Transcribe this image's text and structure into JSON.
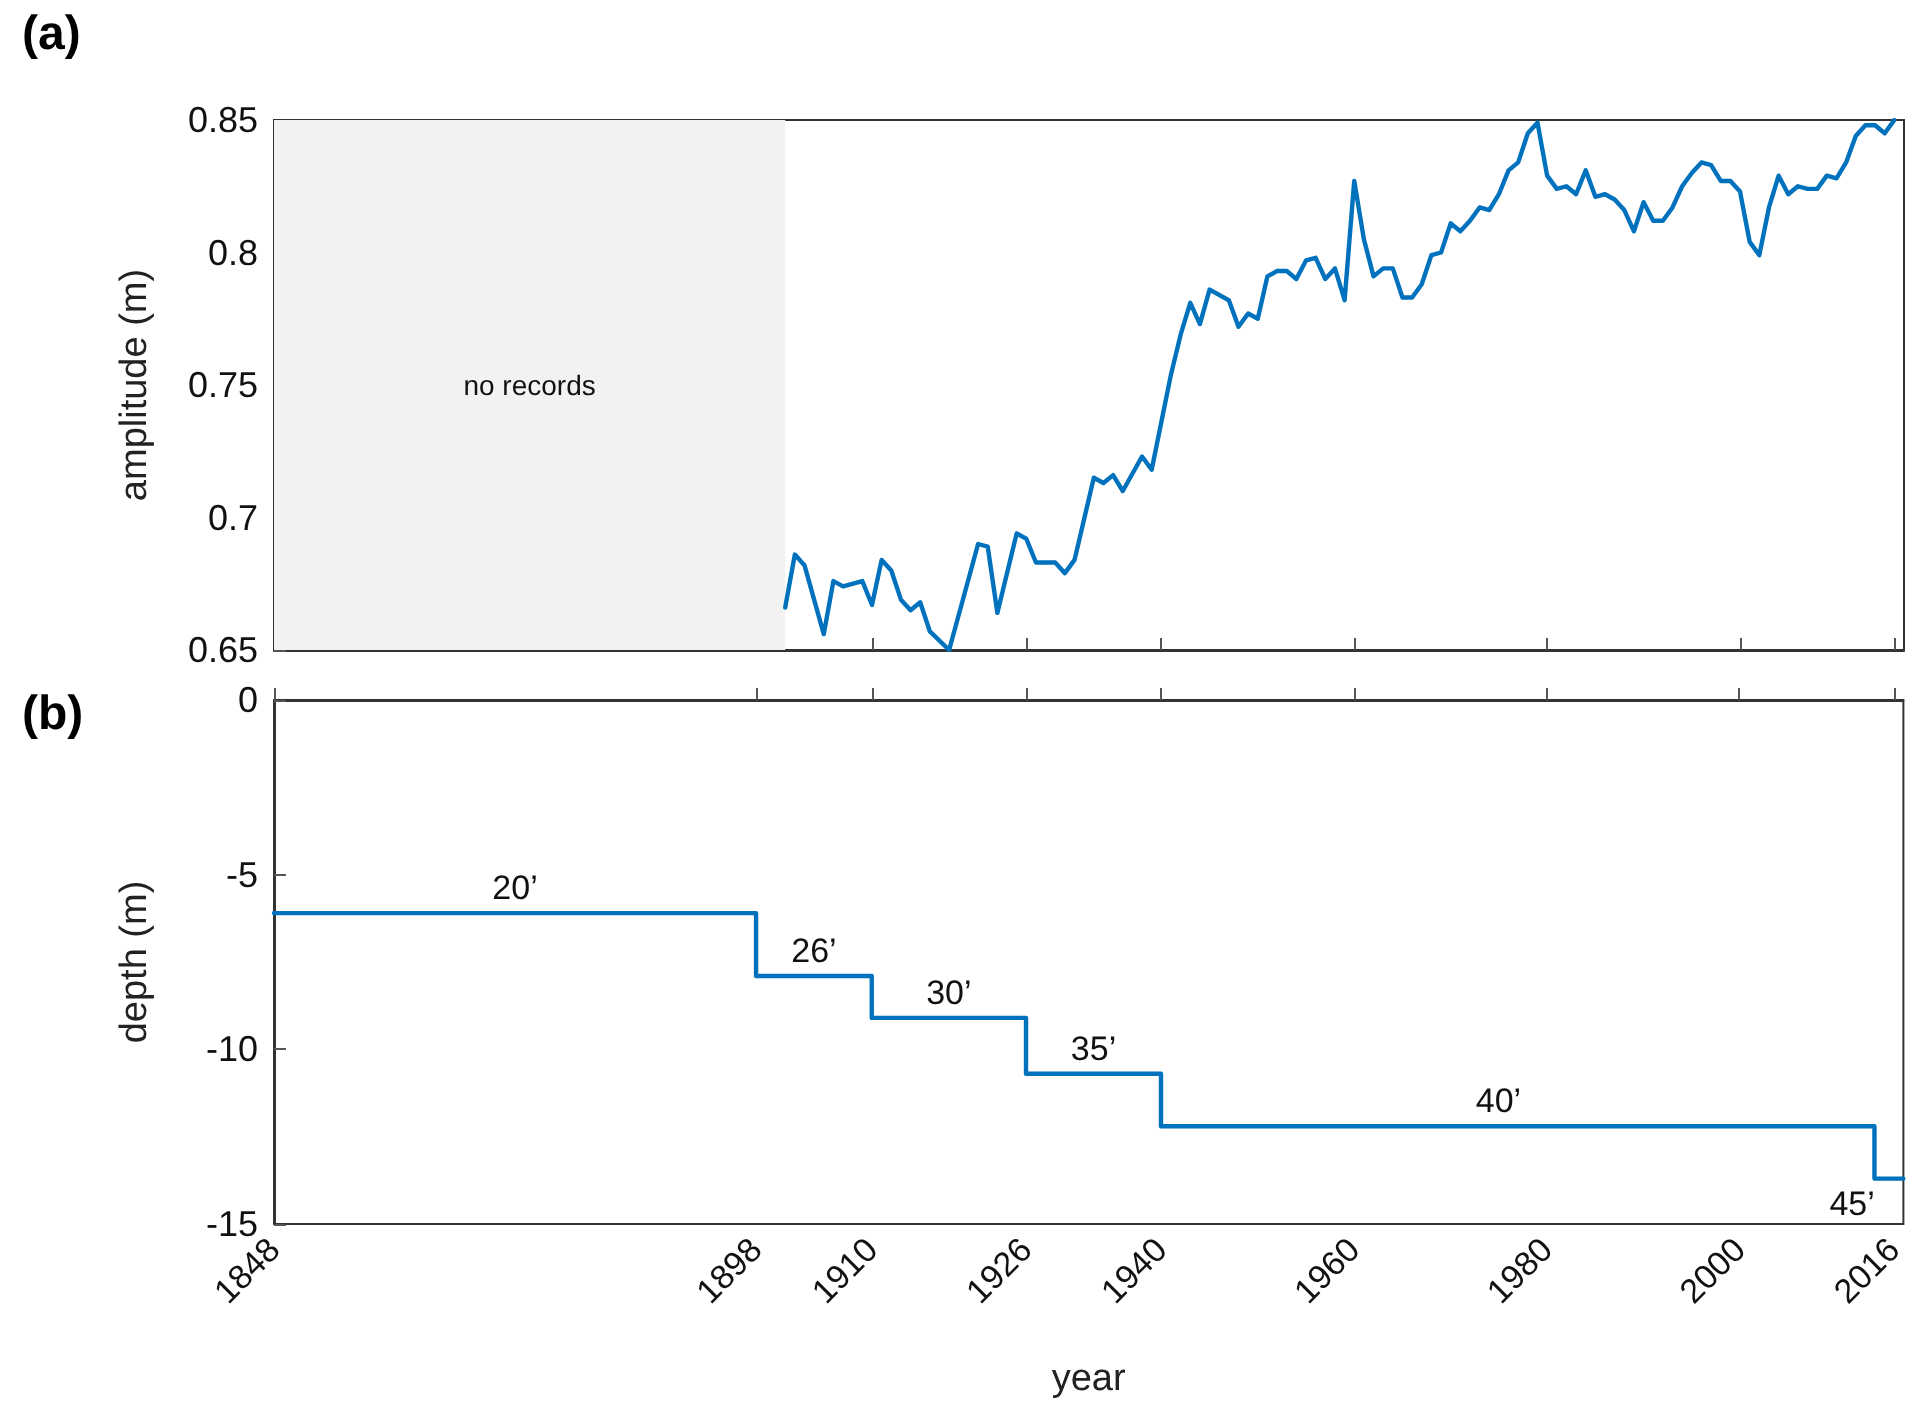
{
  "chart_data": [
    {
      "type": "line",
      "title": "(a)",
      "ylabel": "amplitude (m)",
      "color": "#0072bd",
      "line_style": "solid",
      "grid": false,
      "tick_labels": "y",
      "x": [
        1901,
        1902,
        1903,
        1905,
        1906,
        1907,
        1909,
        1910,
        1911,
        1912,
        1913,
        1914,
        1915,
        1916,
        1918,
        1921,
        1922,
        1923,
        1925,
        1926,
        1927,
        1929,
        1930,
        1931,
        1933,
        1934,
        1935,
        1936,
        1938,
        1939,
        1941,
        1942,
        1943,
        1944,
        1945,
        1947,
        1948,
        1949,
        1950,
        1951,
        1952,
        1953,
        1954,
        1955,
        1956,
        1957,
        1958,
        1959,
        1960,
        1961,
        1962,
        1963,
        1964,
        1965,
        1966,
        1967,
        1968,
        1969,
        1970,
        1971,
        1972,
        1973,
        1974,
        1975,
        1976,
        1977,
        1978,
        1979,
        1980,
        1981,
        1982,
        1983,
        1984,
        1985,
        1986,
        1987,
        1988,
        1989,
        1990,
        1991,
        1992,
        1993,
        1994,
        1995,
        1996,
        1997,
        1998,
        1999,
        2000,
        2001,
        2002,
        2003,
        2004,
        2005,
        2006,
        2007,
        2008,
        2009,
        2010,
        2011,
        2012,
        2013,
        2014,
        2015,
        2016
      ],
      "values": [
        0.666,
        0.686,
        0.682,
        0.656,
        0.676,
        0.674,
        0.676,
        0.667,
        0.684,
        0.68,
        0.669,
        0.665,
        0.668,
        0.657,
        0.65,
        0.69,
        0.689,
        0.664,
        0.694,
        0.692,
        0.683,
        0.683,
        0.679,
        0.684,
        0.715,
        0.713,
        0.716,
        0.71,
        0.723,
        0.718,
        0.754,
        0.769,
        0.781,
        0.773,
        0.786,
        0.782,
        0.772,
        0.777,
        0.775,
        0.791,
        0.793,
        0.793,
        0.79,
        0.797,
        0.798,
        0.79,
        0.794,
        0.782,
        0.827,
        0.805,
        0.791,
        0.794,
        0.794,
        0.783,
        0.783,
        0.788,
        0.799,
        0.8,
        0.811,
        0.808,
        0.812,
        0.817,
        0.816,
        0.822,
        0.831,
        0.834,
        0.845,
        0.849,
        0.829,
        0.824,
        0.825,
        0.822,
        0.831,
        0.821,
        0.822,
        0.82,
        0.816,
        0.808,
        0.819,
        0.812,
        0.812,
        0.817,
        0.825,
        0.83,
        0.834,
        0.833,
        0.827,
        0.827,
        0.823,
        0.804,
        0.799,
        0.817,
        0.829,
        0.822,
        0.825,
        0.824,
        0.824,
        0.829,
        0.828,
        0.834,
        0.844,
        0.848,
        0.848,
        0.845,
        0.85
      ],
      "xlim": [
        1848,
        2017
      ],
      "xticks": [
        1848,
        1898,
        1910,
        1926,
        1940,
        1960,
        1980,
        2000,
        2016
      ],
      "ylim": [
        0.65,
        0.85
      ],
      "yticks": [
        0.65,
        0.7,
        0.75,
        0.8,
        0.85
      ],
      "bands": [
        {
          "axis": "x",
          "from": 1848,
          "to": 1901,
          "label": "no records",
          "color": "#f2f2f2"
        }
      ]
    },
    {
      "type": "step",
      "title": "(b)",
      "xlabel": "year",
      "ylabel": "depth (m)",
      "color": "#0072bd",
      "line_style": "solid",
      "grid": false,
      "x": [
        1848,
        1898,
        1910,
        1926,
        1940,
        2014,
        2017
      ],
      "values": [
        -6.1,
        -7.9,
        -9.1,
        -10.7,
        -12.2,
        -13.7,
        -13.7
      ],
      "xlim": [
        1848,
        2017
      ],
      "xticks": [
        1848,
        1898,
        1910,
        1926,
        1940,
        1960,
        1980,
        2000,
        2016
      ],
      "ylim": [
        -15,
        0
      ],
      "yticks": [
        -15,
        -10,
        -5,
        0
      ],
      "annotations": [
        {
          "text": "20’",
          "x": 1873,
          "y": -6.1
        },
        {
          "text": "26’",
          "x": 1904,
          "y": -7.9
        },
        {
          "text": "30’",
          "x": 1918,
          "y": -9.1
        },
        {
          "text": "35’",
          "x": 1933,
          "y": -10.7
        },
        {
          "text": "40’",
          "x": 1975,
          "y": -12.2
        },
        {
          "text": "45’",
          "x": 2015,
          "y": -13.7
        }
      ]
    }
  ]
}
